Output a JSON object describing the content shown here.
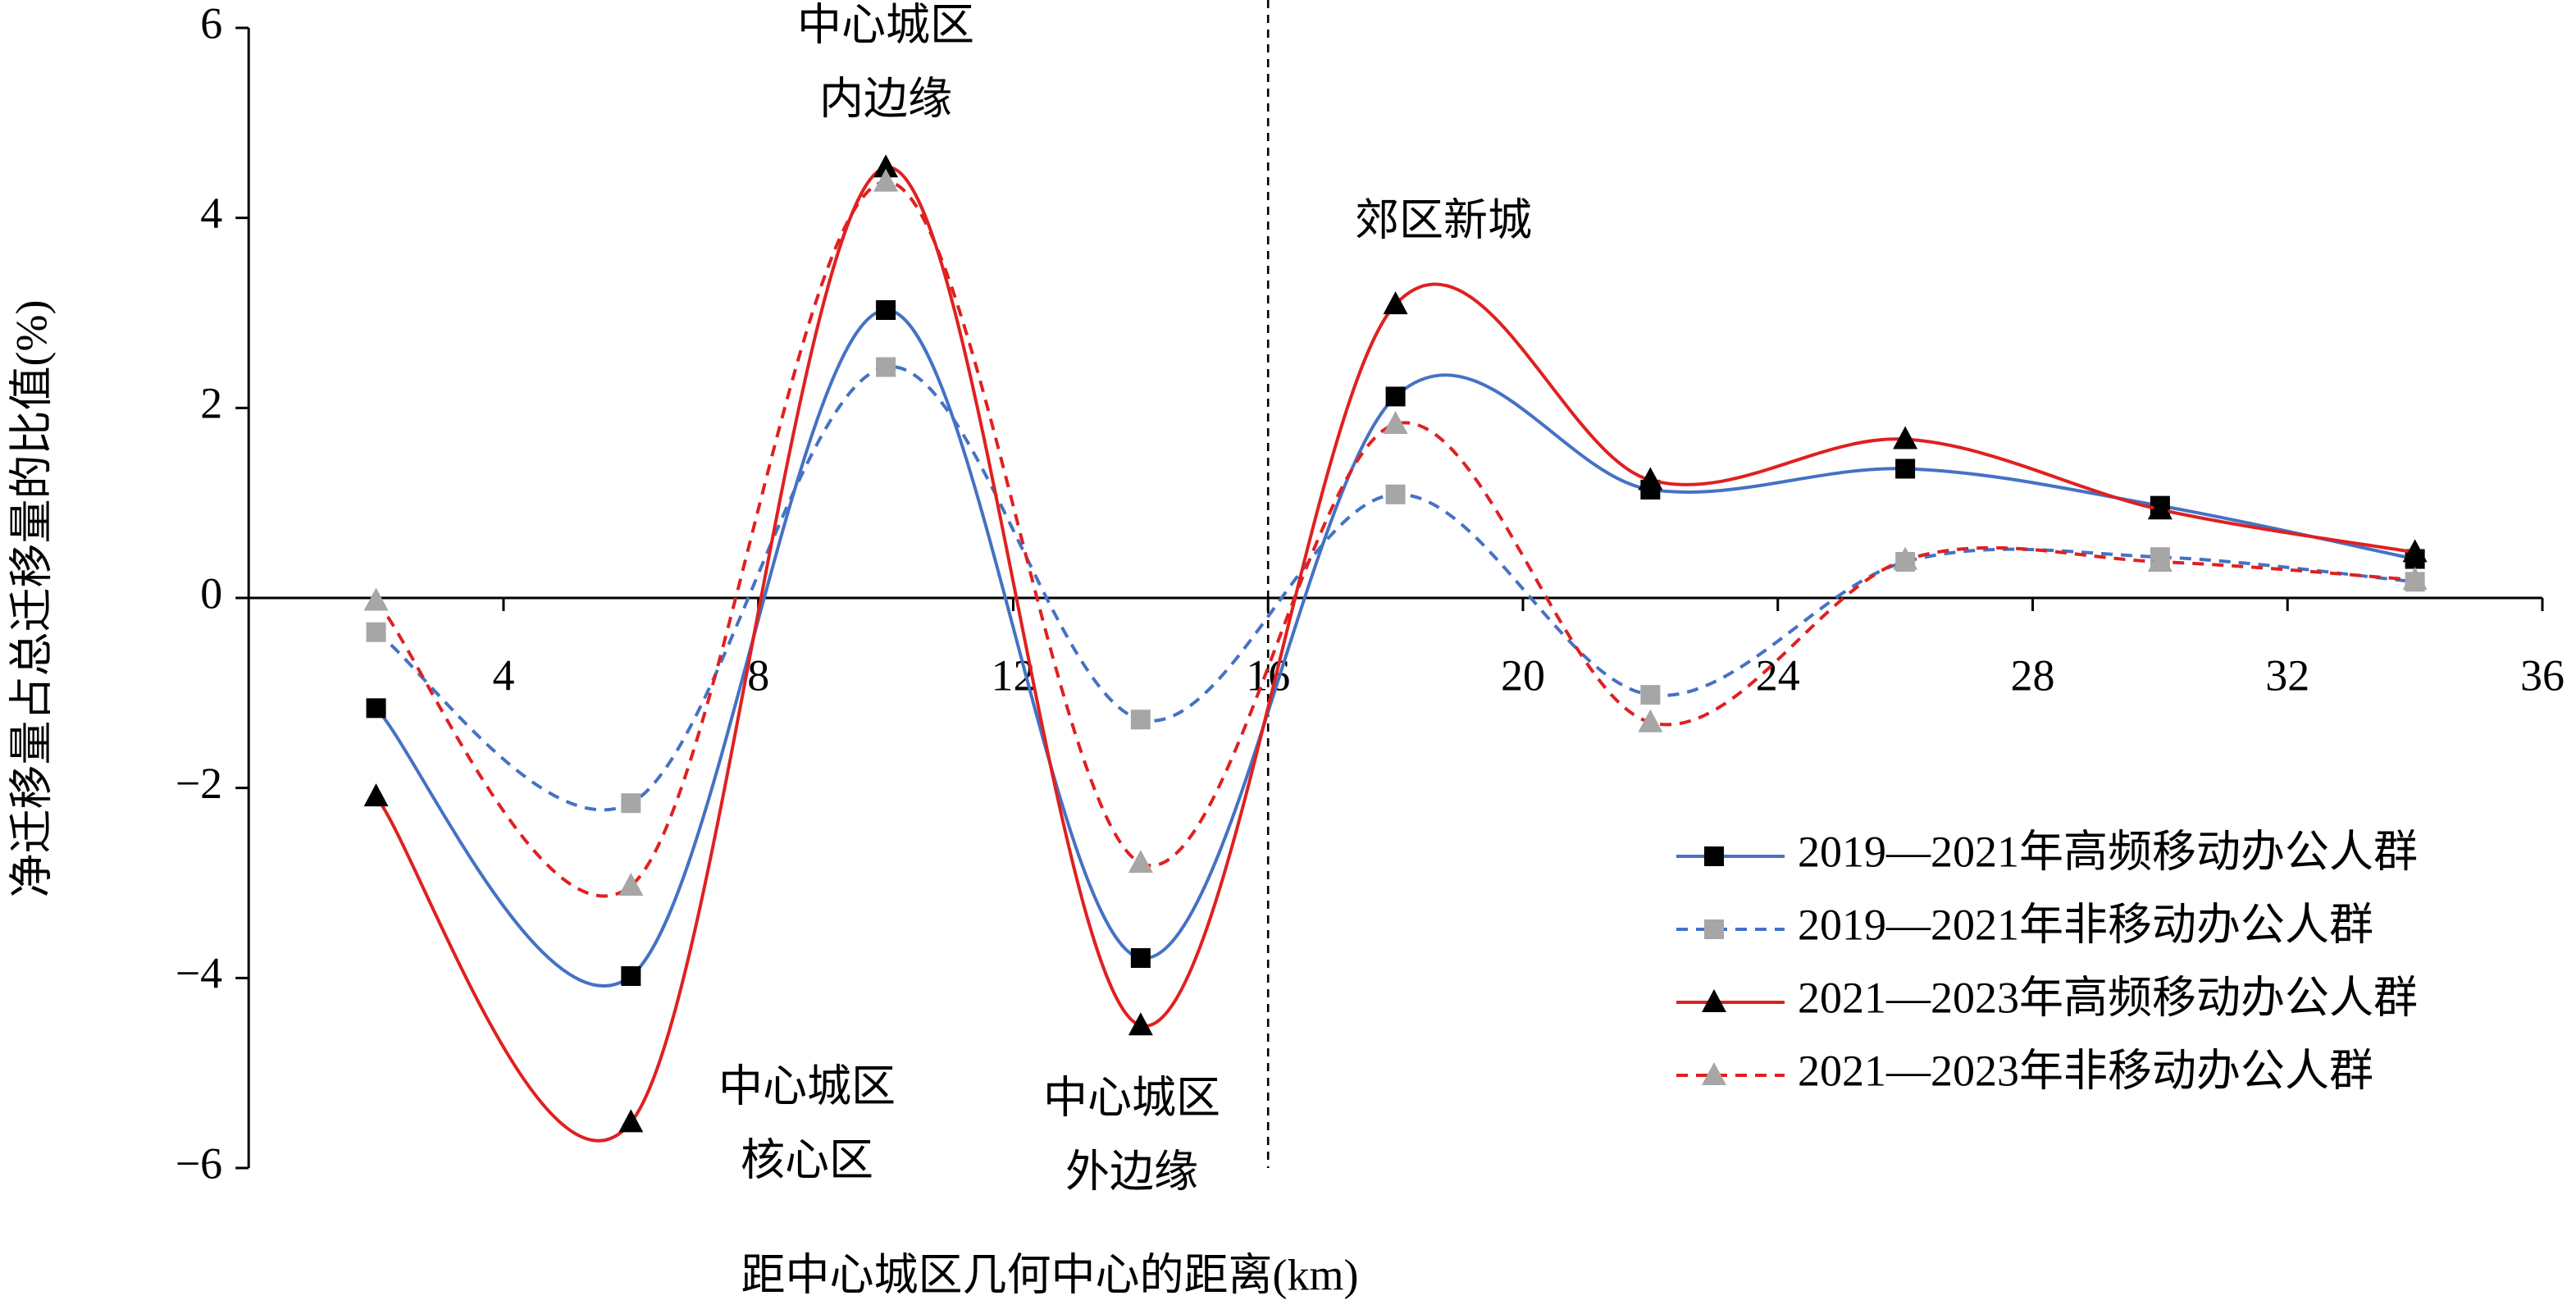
{
  "chart_data": {
    "type": "line",
    "x_label": "距中心城区几何中心的距离(km)",
    "y_label": "净迁移量占总迁移量的比值(%)",
    "x": [
      2,
      6,
      10,
      14,
      18,
      22,
      26,
      30,
      34
    ],
    "series": [
      {
        "name": "2019—2021年高频移动办公人群",
        "color": "#4472c4",
        "marker_color": "#000000",
        "marker": "square",
        "dash": false,
        "values": [
          -1.16,
          -3.98,
          3.03,
          -3.79,
          2.12,
          1.14,
          1.36,
          0.97,
          0.41
        ]
      },
      {
        "name": "2019—2021年非移动办公人群",
        "color": "#4472c4",
        "marker_color": "#a6a6a6",
        "marker": "square",
        "dash": true,
        "values": [
          -0.36,
          -2.16,
          2.43,
          -1.28,
          1.09,
          -1.02,
          0.38,
          0.43,
          0.17
        ]
      },
      {
        "name": "2021—2023年高频移动办公人群",
        "color": "#e02020",
        "marker_color": "#000000",
        "marker": "triangle",
        "dash": false,
        "values": [
          -2.09,
          -5.52,
          4.53,
          -4.5,
          3.09,
          1.24,
          1.67,
          0.93,
          0.48
        ]
      },
      {
        "name": "2021—2023年非移动办公人群",
        "color": "#e02020",
        "marker_color": "#a6a6a6",
        "marker": "triangle",
        "dash": true,
        "values": [
          -0.03,
          -3.03,
          4.38,
          -2.79,
          1.83,
          -1.31,
          0.4,
          0.38,
          0.19
        ]
      }
    ],
    "xlim": [
      0,
      36
    ],
    "xticks": [
      4,
      8,
      12,
      16,
      20,
      24,
      28,
      32,
      36
    ],
    "ylim": [
      -6,
      6
    ],
    "yticks": [
      {
        "value": -6,
        "label": "−6"
      },
      {
        "value": -4,
        "label": "−4"
      },
      {
        "value": -2,
        "label": "−2"
      },
      0,
      2,
      4,
      6
    ],
    "divider_x": 16,
    "annotations": [
      {
        "lines": [
          "中心城区",
          "内边缘"
        ]
      },
      {
        "lines": [
          "郊区新城"
        ]
      },
      {
        "lines": [
          "中心城区",
          "核心区"
        ]
      },
      {
        "lines": [
          "中心城区",
          "外边缘"
        ]
      }
    ],
    "legend": "lower right"
  }
}
